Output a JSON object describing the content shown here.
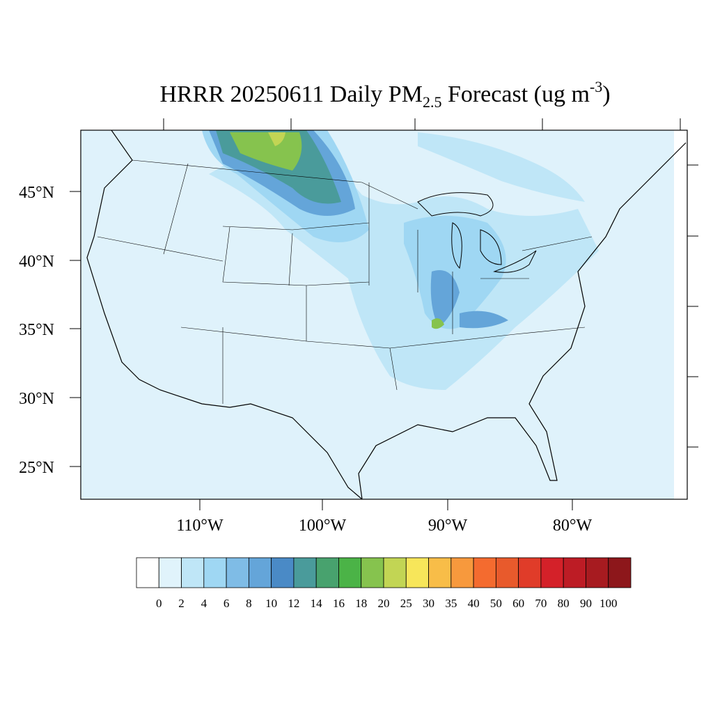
{
  "title": {
    "main": "HRRR 20250611 Daily PM",
    "subscript": "2.5",
    "rest": " Forecast (ug m",
    "superscript": "-3",
    "close": ")"
  },
  "lat_labels": [
    "45°N",
    "40°N",
    "35°N",
    "30°N",
    "25°N"
  ],
  "lon_labels": [
    "110°W",
    "100°W",
    "90°W",
    "80°W"
  ],
  "legend": {
    "levels": [
      0,
      2,
      4,
      6,
      8,
      10,
      12,
      14,
      16,
      18,
      20,
      25,
      30,
      35,
      40,
      50,
      60,
      70,
      80,
      90,
      100
    ],
    "colors": [
      "#ffffff",
      "#e0f3fb",
      "#bfe6f7",
      "#9fd7f3",
      "#7fbce6",
      "#64a5d9",
      "#4a8ac6",
      "#4a9b9b",
      "#48a26e",
      "#4bb347",
      "#86c34e",
      "#c2d554",
      "#f7e65a",
      "#f8bd48",
      "#f7993d",
      "#f46b2f",
      "#e85a2c",
      "#e03c29",
      "#d42129",
      "#bd1c25",
      "#a71b20",
      "#8d171b"
    ]
  }
}
